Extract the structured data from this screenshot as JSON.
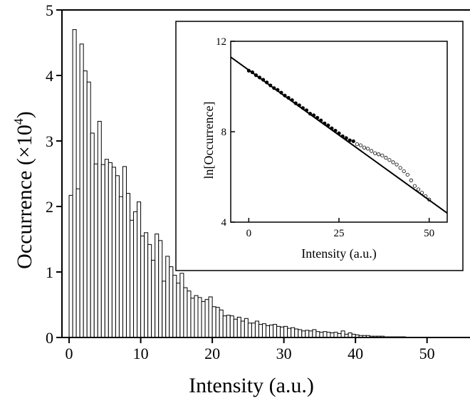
{
  "chart_data": [
    {
      "type": "bar",
      "xlabel": "Intensity (a.u.)",
      "ylabel": "Occurrence (×10",
      "ylabel_exponent": "4",
      "ylabel_close": ")",
      "xlim": [
        -1,
        56
      ],
      "ylim": [
        0,
        5
      ],
      "xticks": [
        0,
        10,
        20,
        30,
        40,
        50
      ],
      "yticks": [
        0,
        1,
        2,
        3,
        4,
        5
      ],
      "bin_width": 0.5,
      "x": [
        0.5,
        1,
        1.5,
        2,
        2.5,
        3,
        3.5,
        4,
        4.5,
        5,
        5.5,
        6,
        6.5,
        7,
        7.5,
        8,
        8.5,
        9,
        9.5,
        10,
        10.5,
        11,
        11.5,
        12,
        12.5,
        13,
        13.5,
        14,
        14.5,
        15,
        15.5,
        16,
        16.5,
        17,
        17.5,
        18,
        18.5,
        19,
        19.5,
        20,
        20.5,
        21,
        21.5,
        22,
        22.5,
        23,
        23.5,
        24,
        24.5,
        25,
        25.5,
        26,
        26.5,
        27,
        27.5,
        28,
        28.5,
        29,
        29.5,
        30,
        30.5,
        31,
        31.5,
        32,
        32.5,
        33,
        33.5,
        34,
        34.5,
        35,
        35.5,
        36,
        36.5,
        37,
        37.5,
        38,
        38.5,
        39,
        39.5,
        40,
        40.5,
        41,
        41.5,
        42,
        42.5,
        43,
        43.5,
        44,
        44.5,
        45,
        45.5,
        46,
        46.5,
        47
      ],
      "values": [
        2.17,
        4.7,
        2.27,
        4.48,
        4.07,
        3.9,
        3.12,
        2.65,
        3.3,
        2.64,
        2.72,
        2.67,
        2.6,
        2.47,
        2.15,
        2.61,
        2.2,
        1.79,
        1.92,
        2.07,
        1.55,
        1.6,
        1.42,
        1.18,
        1.58,
        1.48,
        0.86,
        1.24,
        1.08,
        0.95,
        0.83,
        0.98,
        0.76,
        0.71,
        0.6,
        0.64,
        0.61,
        0.55,
        0.58,
        0.62,
        0.47,
        0.46,
        0.42,
        0.33,
        0.34,
        0.33,
        0.28,
        0.31,
        0.25,
        0.29,
        0.22,
        0.22,
        0.25,
        0.2,
        0.21,
        0.18,
        0.19,
        0.2,
        0.17,
        0.16,
        0.17,
        0.14,
        0.15,
        0.13,
        0.12,
        0.1,
        0.11,
        0.1,
        0.12,
        0.09,
        0.08,
        0.09,
        0.08,
        0.07,
        0.08,
        0.06,
        0.1,
        0.05,
        0.07,
        0.05,
        0.04,
        0.03,
        0.03,
        0.03,
        0.02,
        0.02,
        0.02,
        0.02,
        0.01,
        0.01,
        0.01,
        0.01,
        0.01,
        0.01
      ],
      "grid": false
    },
    {
      "type": "scatter",
      "xlabel": "Intensity (a.u.)",
      "ylabel": "ln[Occurrence]",
      "xlim": [
        -5,
        55
      ],
      "ylim": [
        4,
        12
      ],
      "xticks": [
        0,
        25,
        50
      ],
      "yticks": [
        4,
        8,
        12
      ],
      "fit_line": {
        "x": [
          -5,
          55
        ],
        "y": [
          11.3,
          4.4
        ]
      },
      "x": [
        0,
        1,
        2,
        3,
        4,
        5,
        6,
        7,
        8,
        9,
        10,
        11,
        12,
        13,
        14,
        15,
        16,
        17,
        18,
        19,
        20,
        21,
        22,
        23,
        24,
        25,
        26,
        27,
        28,
        29,
        30,
        31,
        32,
        33,
        34,
        35,
        36,
        37,
        38,
        39,
        40,
        41,
        42,
        43,
        44,
        45,
        46,
        47,
        48,
        49,
        50
      ],
      "y": [
        10.7,
        10.63,
        10.5,
        10.4,
        10.3,
        10.18,
        10.05,
        9.93,
        9.85,
        9.73,
        9.6,
        9.5,
        9.4,
        9.26,
        9.17,
        9.05,
        8.95,
        8.8,
        8.73,
        8.62,
        8.5,
        8.37,
        8.28,
        8.15,
        8.05,
        7.93,
        7.8,
        7.72,
        7.62,
        7.58,
        7.45,
        7.4,
        7.3,
        7.25,
        7.15,
        7.05,
        7.0,
        6.95,
        6.85,
        6.75,
        6.65,
        6.55,
        6.4,
        6.25,
        6.1,
        5.85,
        5.6,
        5.45,
        5.3,
        5.15,
        5.0
      ],
      "grid": false
    }
  ]
}
